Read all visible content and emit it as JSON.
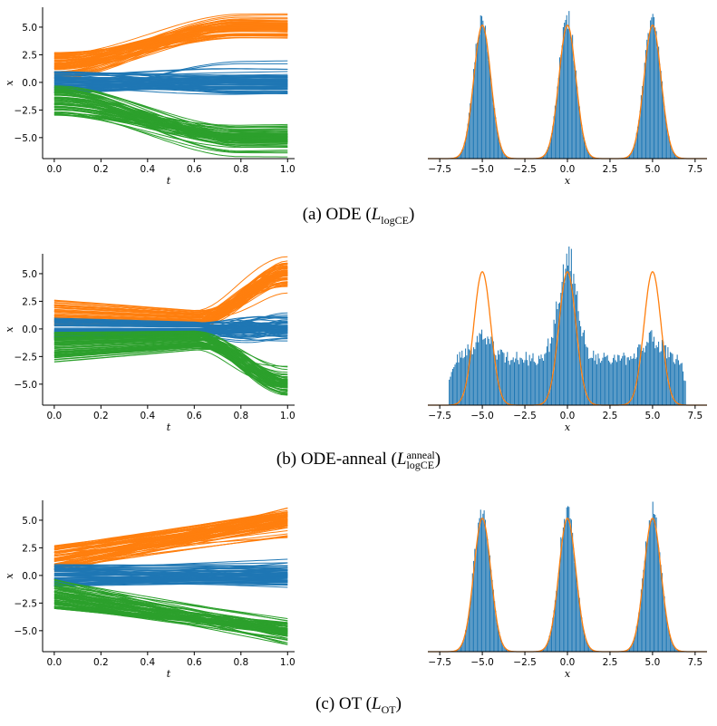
{
  "rows": [
    {
      "caption": {
        "prefix": "(a) ODE (",
        "script_letter": "L",
        "sub": "logCE",
        "sup": "",
        "suffix": ")"
      },
      "traj": {
        "mode": "ode"
      },
      "hist": {
        "mode": "good"
      }
    },
    {
      "caption": {
        "prefix": "(b) ODE-anneal (",
        "script_letter": "L",
        "sub": "logCE",
        "sup": "anneal",
        "suffix": ")"
      },
      "traj": {
        "mode": "anneal"
      },
      "hist": {
        "mode": "anneal"
      }
    },
    {
      "caption": {
        "prefix": "(c) OT (",
        "script_letter": "L",
        "sub": "OT",
        "sup": "",
        "suffix": ")"
      },
      "traj": {
        "mode": "ot"
      },
      "hist": {
        "mode": "good"
      }
    }
  ],
  "chart_data": [
    {
      "type": "line",
      "panel": "trajectories",
      "xlabel": "t",
      "ylabel": "x",
      "xlim": [
        -0.05,
        1.03
      ],
      "ylim": [
        -6.9,
        6.8
      ],
      "xticks": [
        0.0,
        0.2,
        0.4,
        0.6,
        0.8,
        1.0
      ],
      "xtick_labels": [
        "0.0",
        "0.2",
        "0.4",
        "0.6",
        "0.8",
        "1.0"
      ],
      "yticks": [
        5.0,
        2.5,
        0.0,
        -2.5,
        -5.0
      ],
      "ytick_labels": [
        "5.0",
        "2.5",
        "0.0",
        "−2.5",
        "−5.0"
      ],
      "series": [
        {
          "target_mean": 5.0,
          "start_range": [
            0.3,
            2.7
          ],
          "color": "#ff7f0e"
        },
        {
          "target_mean": 0.0,
          "start_range": [
            -1.0,
            1.0
          ],
          "color": "#1f77b4"
        },
        {
          "target_mean": -5.0,
          "start_range": [
            -3.0,
            -0.3
          ],
          "color": "#2ca02c"
        }
      ],
      "grid": false
    },
    {
      "type": "bar",
      "panel": "histogram",
      "xlabel": "x",
      "xlim": [
        -8.2,
        8.2
      ],
      "xticks": [
        -7.5,
        -5.0,
        -2.5,
        0.0,
        2.5,
        5.0,
        7.5
      ],
      "xtick_labels": [
        "−7.5",
        "−5.0",
        "−2.5",
        "0.0",
        "2.5",
        "5.0",
        "7.5"
      ],
      "density_modes": [
        -5.0,
        0.0,
        5.0
      ],
      "density_sigma": 0.5,
      "bar_color": "#1f77b4",
      "density_color": "#ff7f0e",
      "grid": false
    }
  ]
}
